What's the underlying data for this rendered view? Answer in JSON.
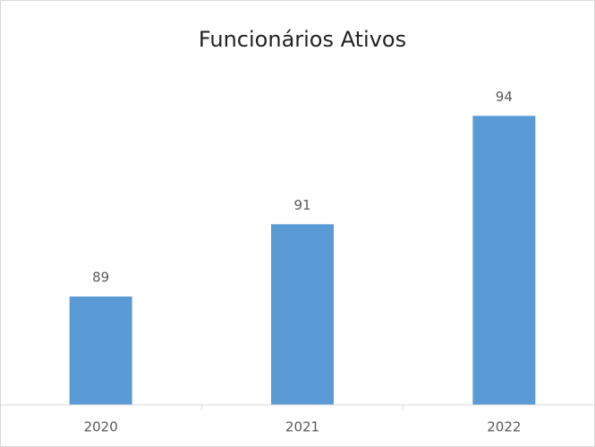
{
  "chart_data": {
    "type": "bar",
    "title": "Funcionários Ativos",
    "categories": [
      "2020",
      "2021",
      "2022"
    ],
    "values": [
      89,
      91,
      94
    ],
    "color": "#5b9bd5",
    "ylim": [
      86,
      95
    ]
  }
}
